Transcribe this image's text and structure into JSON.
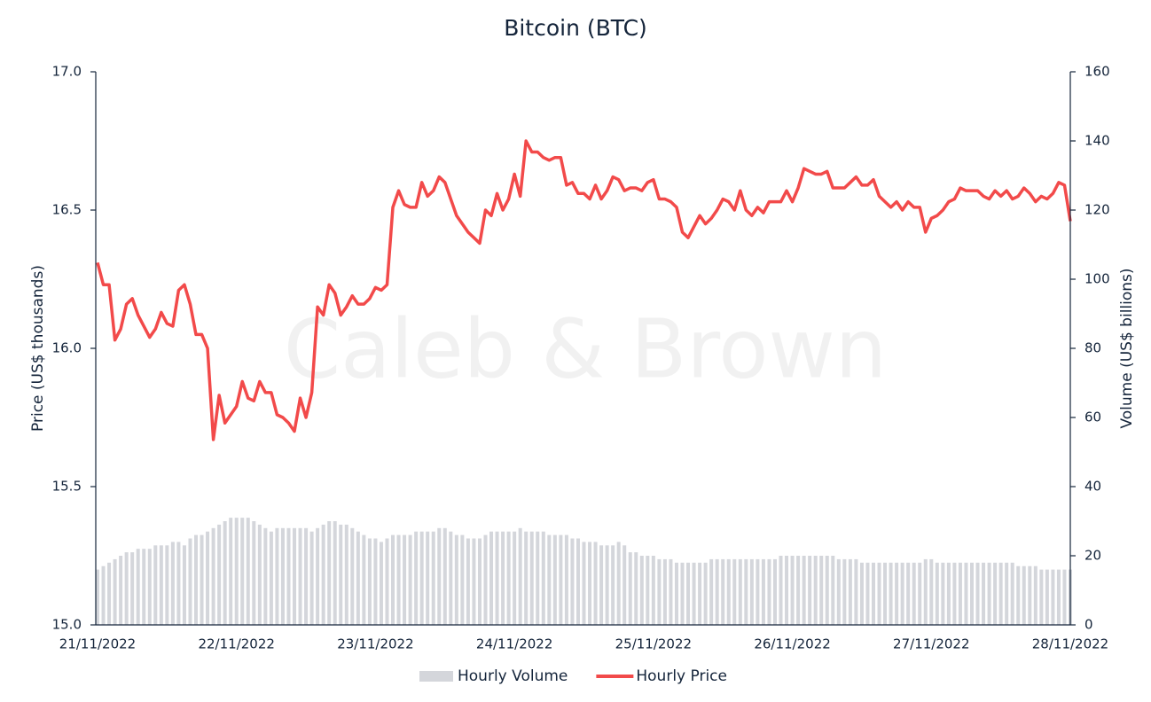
{
  "chart_data": {
    "type": "combo",
    "title": "Bitcoin (BTC)",
    "watermark": "Caleb & Brown",
    "y_label": "Price (US$ thousands)",
    "y2_label": "Volume (US$ billions)",
    "categories": [
      "21/11/2022",
      null,
      null,
      null,
      null,
      null,
      null,
      null,
      null,
      null,
      null,
      null,
      null,
      null,
      null,
      null,
      null,
      null,
      null,
      null,
      null,
      null,
      null,
      null,
      "22/11/2022",
      null,
      null,
      null,
      null,
      null,
      null,
      null,
      null,
      null,
      null,
      null,
      null,
      null,
      null,
      null,
      null,
      null,
      null,
      null,
      null,
      null,
      null,
      null,
      "23/11/2022",
      null,
      null,
      null,
      null,
      null,
      null,
      null,
      null,
      null,
      null,
      null,
      null,
      null,
      null,
      null,
      null,
      null,
      null,
      null,
      null,
      null,
      null,
      null,
      "24/11/2022",
      null,
      null,
      null,
      null,
      null,
      null,
      null,
      null,
      null,
      null,
      null,
      null,
      null,
      null,
      null,
      null,
      null,
      null,
      null,
      null,
      null,
      null,
      null,
      "25/11/2022",
      null,
      null,
      null,
      null,
      null,
      null,
      null,
      null,
      null,
      null,
      null,
      null,
      null,
      null,
      null,
      null,
      null,
      null,
      null,
      null,
      null,
      null,
      null,
      "26/11/2022",
      null,
      null,
      null,
      null,
      null,
      null,
      null,
      null,
      null,
      null,
      null,
      null,
      null,
      null,
      null,
      null,
      null,
      null,
      null,
      null,
      null,
      null,
      null,
      "27/11/2022",
      null,
      null,
      null,
      null,
      null,
      null,
      null,
      null,
      null,
      null,
      null,
      null,
      null,
      null,
      null,
      null,
      null,
      null,
      null,
      null,
      null,
      null,
      null,
      "28/11/2022"
    ],
    "series": [
      {
        "name": "Hourly Volume",
        "type": "bar",
        "axis": "y2",
        "color": "#d4d6db",
        "values": [
          16,
          17,
          18,
          19,
          20,
          21,
          21,
          22,
          22,
          22,
          23,
          23,
          23,
          24,
          24,
          23,
          25,
          26,
          26,
          27,
          28,
          29,
          30,
          31,
          31,
          31,
          31,
          30,
          29,
          28,
          27,
          28,
          28,
          28,
          28,
          28,
          28,
          27,
          28,
          29,
          30,
          30,
          29,
          29,
          28,
          27,
          26,
          25,
          25,
          24,
          25,
          26,
          26,
          26,
          26,
          27,
          27,
          27,
          27,
          28,
          28,
          27,
          26,
          26,
          25,
          25,
          25,
          26,
          27,
          27,
          27,
          27,
          27,
          28,
          27,
          27,
          27,
          27,
          26,
          26,
          26,
          26,
          25,
          25,
          24,
          24,
          24,
          23,
          23,
          23,
          24,
          23,
          21,
          21,
          20,
          20,
          20,
          19,
          19,
          19,
          18,
          18,
          18,
          18,
          18,
          18,
          19,
          19,
          19,
          19,
          19,
          19,
          19,
          19,
          19,
          19,
          19,
          19,
          20,
          20,
          20,
          20,
          20,
          20,
          20,
          20,
          20,
          20,
          19,
          19,
          19,
          19,
          18,
          18,
          18,
          18,
          18,
          18,
          18,
          18,
          18,
          18,
          18,
          19,
          19,
          18,
          18,
          18,
          18,
          18,
          18,
          18,
          18,
          18,
          18,
          18,
          18,
          18,
          18,
          17,
          17,
          17,
          17,
          16,
          16,
          16,
          16,
          16,
          16
        ]
      },
      {
        "name": "Hourly Price",
        "type": "line",
        "color": "#f24a4a",
        "values": [
          16.31,
          16.23,
          16.23,
          16.03,
          16.07,
          16.16,
          16.18,
          16.12,
          16.08,
          16.04,
          16.07,
          16.13,
          16.09,
          16.08,
          16.21,
          16.23,
          16.16,
          16.05,
          16.05,
          16.0,
          15.67,
          15.83,
          15.73,
          15.76,
          15.79,
          15.88,
          15.82,
          15.81,
          15.88,
          15.84,
          15.84,
          15.76,
          15.75,
          15.73,
          15.7,
          15.82,
          15.75,
          15.84,
          16.15,
          16.12,
          16.23,
          16.2,
          16.12,
          16.15,
          16.19,
          16.16,
          16.16,
          16.18,
          16.22,
          16.21,
          16.23,
          16.51,
          16.57,
          16.52,
          16.51,
          16.51,
          16.6,
          16.55,
          16.57,
          16.62,
          16.6,
          16.54,
          16.48,
          16.45,
          16.42,
          16.4,
          16.38,
          16.5,
          16.48,
          16.56,
          16.5,
          16.54,
          16.63,
          16.55,
          16.75,
          16.71,
          16.71,
          16.69,
          16.68,
          16.69,
          16.69,
          16.59,
          16.6,
          16.56,
          16.56,
          16.54,
          16.59,
          16.54,
          16.57,
          16.62,
          16.61,
          16.57,
          16.58,
          16.58,
          16.57,
          16.6,
          16.61,
          16.54,
          16.54,
          16.53,
          16.51,
          16.42,
          16.4,
          16.44,
          16.48,
          16.45,
          16.47,
          16.5,
          16.54,
          16.53,
          16.5,
          16.57,
          16.5,
          16.48,
          16.51,
          16.49,
          16.53,
          16.53,
          16.53,
          16.57,
          16.53,
          16.58,
          16.65,
          16.64,
          16.63,
          16.63,
          16.64,
          16.58,
          16.58,
          16.58,
          16.6,
          16.62,
          16.59,
          16.59,
          16.61,
          16.55,
          16.53,
          16.51,
          16.53,
          16.5,
          16.53,
          16.51,
          16.51,
          16.42,
          16.47,
          16.48,
          16.5,
          16.53,
          16.54,
          16.58,
          16.57,
          16.57,
          16.57,
          16.55,
          16.54,
          16.57,
          16.55,
          16.57,
          16.54,
          16.55,
          16.58,
          16.56,
          16.53,
          16.55,
          16.54,
          16.56,
          16.6,
          16.59,
          16.46
        ]
      }
    ],
    "ylim": [
      15,
      17
    ],
    "yticks": [
      {
        "value": 15,
        "label": "15.0"
      },
      15.5,
      {
        "value": 16,
        "label": "16.0"
      },
      16.5,
      {
        "value": 17,
        "label": "17.0"
      }
    ],
    "y2lim": [
      0,
      160
    ],
    "y2ticks": [
      0,
      20,
      40,
      60,
      80,
      100,
      120,
      140,
      160
    ],
    "legend": "bottom"
  }
}
